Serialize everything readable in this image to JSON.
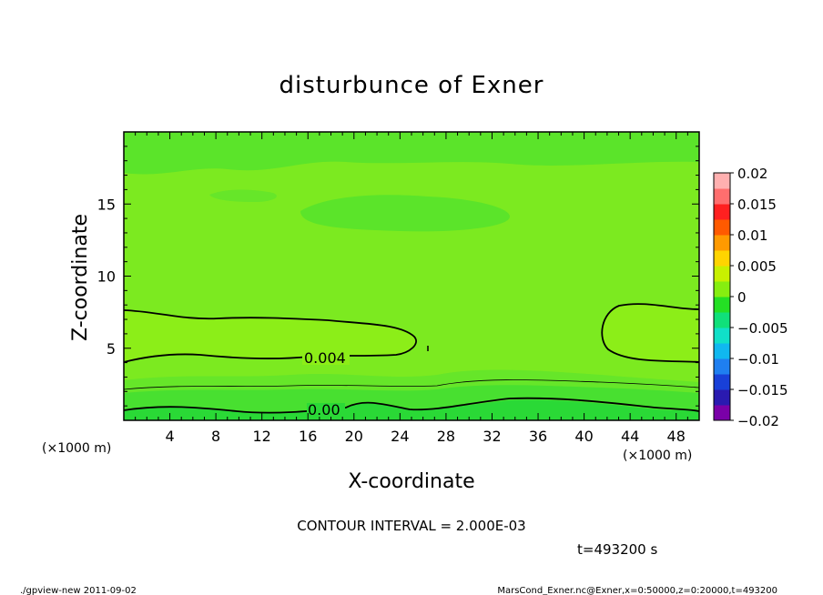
{
  "chart_data": {
    "type": "heatmap",
    "title": "disturbunce of Exner",
    "xlabel": "X-coordinate",
    "ylabel": "Z-coordinate",
    "x_unit_left": "(×1000 m)",
    "x_unit_right": "(×1000 m)",
    "xlim": [
      0,
      50
    ],
    "ylim": [
      0,
      20
    ],
    "x_ticks": [
      4,
      8,
      12,
      16,
      20,
      24,
      28,
      32,
      36,
      40,
      44,
      48
    ],
    "y_ticks": [
      5,
      10,
      15
    ],
    "colorbar": {
      "range": [
        -0.02,
        0.02
      ],
      "labels": [
        "0.02",
        "0.015",
        "0.01",
        "0.005",
        "0",
        "−0.005",
        "−0.01",
        "−0.015",
        "−0.02"
      ],
      "colors": [
        "#7a00a8",
        "#2a1ab0",
        "#1840d8",
        "#1f7ff0",
        "#10b8f0",
        "#10e0c8",
        "#10e07a",
        "#24e024",
        "#86ee10",
        "#c8f000",
        "#ffd400",
        "#ff9a00",
        "#ff5a00",
        "#ff2020",
        "#ff6e6e",
        "#ffb0b0"
      ]
    },
    "field_levels": [
      {
        "name": "band_0_1",
        "value": 0.001,
        "color": "#2ad936"
      },
      {
        "name": "band_1_2",
        "value": 0.002,
        "color": "#48e030"
      },
      {
        "name": "band_2_3",
        "value": 0.003,
        "color": "#66e629"
      },
      {
        "name": "band_3_4",
        "value": 0.0035,
        "color": "#7aea22"
      },
      {
        "name": "band_4_5",
        "value": 0.0045,
        "color": "#8cee18"
      }
    ],
    "contour_labels": [
      {
        "text": "0.004",
        "x": 17.8,
        "z": 4.1
      },
      {
        "text": "0.00",
        "x": 17.6,
        "z": 0.7
      }
    ]
  },
  "contour_interval_text": "CONTOUR INTERVAL = 2.000E-03",
  "time_text": "t=493200 s",
  "footer_left": "./gpview-new  2011-09-02",
  "footer_right": "MarsCond_Exner.nc@Exner,x=0:50000,z=0:20000,t=493200"
}
